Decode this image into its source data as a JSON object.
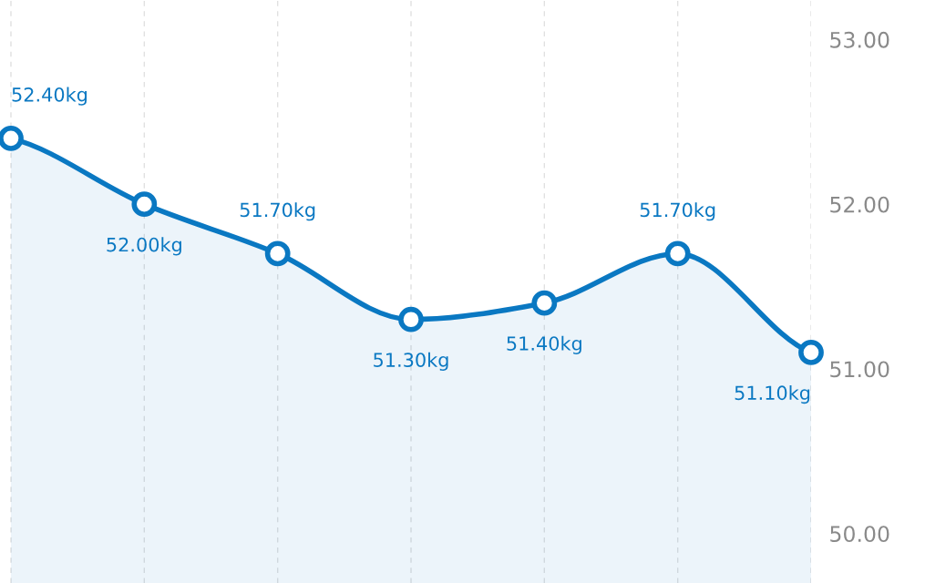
{
  "chart_data": {
    "type": "area",
    "categories": [
      null,
      null,
      null,
      null,
      null,
      null,
      null
    ],
    "series": [
      {
        "color": "#0a78c2",
        "values": [
          52.4,
          52.0,
          51.7,
          51.3,
          51.4,
          51.7,
          51.1
        ],
        "value_labels": [
          "52.40kg",
          "52.00kg",
          "51.70kg",
          "51.30kg",
          "51.40kg",
          "51.70kg",
          "51.10kg"
        ]
      }
    ],
    "ylim": [
      49.7,
      53.24
    ],
    "yticks": [
      {
        "value": 50,
        "label": "50.00"
      },
      {
        "value": 51,
        "label": "51.00"
      },
      {
        "value": 52,
        "label": "52.00"
      },
      {
        "value": 53,
        "label": "53.00"
      }
    ],
    "grid": "x",
    "marker": "circle",
    "line_style": "solid"
  }
}
